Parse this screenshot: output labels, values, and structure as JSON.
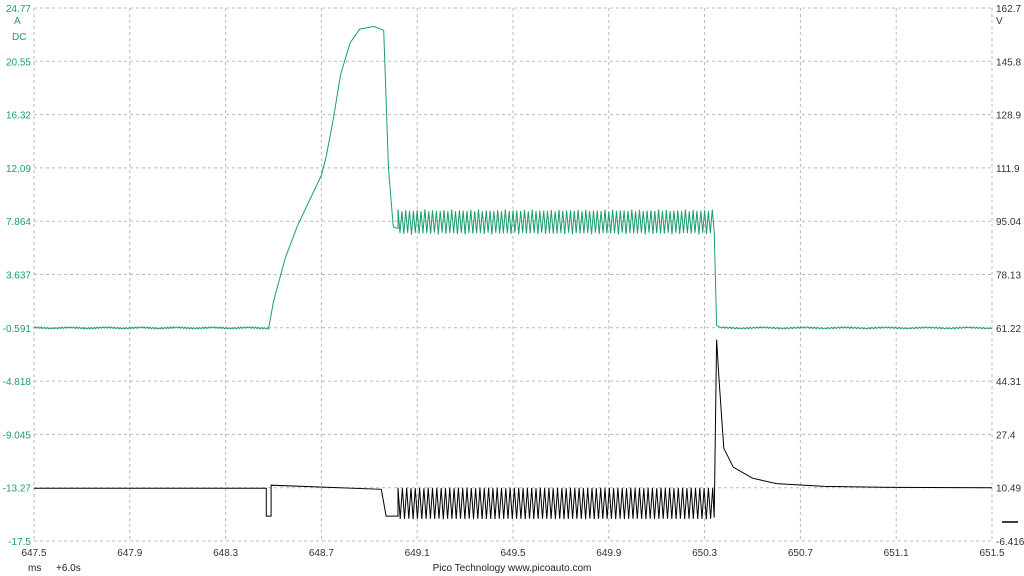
{
  "chart_data": {
    "type": "line",
    "title": "",
    "x_axis": {
      "range": [
        647.5,
        651.5
      ],
      "ticks": [
        "647.5",
        "647.9",
        "648.3",
        "648.7",
        "649.1",
        "649.5",
        "649.9",
        "650.3",
        "650.7",
        "651.1",
        "651.5"
      ],
      "unit_label": "ms",
      "offset_label": "+6.0s"
    },
    "left_axis": {
      "unit": "A",
      "coupling": "DC",
      "range": [
        -17.5,
        24.77
      ],
      "ticks": [
        "24.77",
        "20.55",
        "16.32",
        "12.09",
        "7.864",
        "3.637",
        "-0.591",
        "-4.818",
        "-9.045",
        "-13.27",
        "-17.5"
      ],
      "color": "#1a9e6a"
    },
    "right_axis": {
      "unit": "V",
      "range": [
        -6.416,
        162.7
      ],
      "ticks": [
        "162.7",
        "145.8",
        "128.9",
        "111.9",
        "95.04",
        "78.13",
        "61.22",
        "44.31",
        "27.4",
        "10.49",
        "-6.416"
      ],
      "color": "#333333"
    },
    "grid": true,
    "series": [
      {
        "axis": "left",
        "color": "#1a9e6a",
        "segments": [
          {
            "kind": "flat",
            "x_start": 647.5,
            "x_end": 648.48,
            "y": -0.6,
            "noise": 0.08
          },
          {
            "kind": "points",
            "points": [
              [
                648.48,
                -0.6
              ],
              [
                648.5,
                1.5
              ],
              [
                648.55,
                5.0
              ],
              [
                648.6,
                7.5
              ],
              [
                648.65,
                9.5
              ],
              [
                648.7,
                11.5
              ],
              [
                648.72,
                13.0
              ],
              [
                648.75,
                16.0
              ],
              [
                648.78,
                19.5
              ],
              [
                648.82,
                22.0
              ],
              [
                648.86,
                23.1
              ],
              [
                648.92,
                23.3
              ],
              [
                648.96,
                23.0
              ],
              [
                648.98,
                12.0
              ],
              [
                649.0,
                7.4
              ],
              [
                649.02,
                7.3
              ]
            ]
          },
          {
            "kind": "oscillation",
            "x_start": 649.02,
            "x_end": 650.34,
            "y_min": 6.8,
            "y_max": 8.8,
            "period": 0.016
          },
          {
            "kind": "points",
            "points": [
              [
                650.34,
                7.0
              ],
              [
                650.35,
                -0.4
              ],
              [
                650.37,
                -0.6
              ]
            ]
          },
          {
            "kind": "flat",
            "x_start": 650.37,
            "x_end": 651.5,
            "y": -0.6,
            "noise": 0.08
          }
        ]
      },
      {
        "axis": "right",
        "color": "#000000",
        "segments": [
          {
            "kind": "points",
            "points": [
              [
                647.5,
                10.3
              ],
              [
                648.47,
                10.3
              ],
              [
                648.47,
                1.5
              ],
              [
                648.49,
                1.5
              ],
              [
                648.49,
                11.3
              ],
              [
                648.95,
                10.0
              ],
              [
                648.97,
                1.5
              ],
              [
                649.02,
                1.5
              ]
            ]
          },
          {
            "kind": "oscillation",
            "x_start": 649.02,
            "x_end": 650.34,
            "y_min": 0.5,
            "y_max": 10.5,
            "period": 0.018
          },
          {
            "kind": "points",
            "points": [
              [
                650.34,
                1.0
              ],
              [
                650.35,
                57.5
              ],
              [
                650.36,
                45.0
              ],
              [
                650.38,
                23.0
              ],
              [
                650.42,
                17.0
              ],
              [
                650.5,
                13.5
              ],
              [
                650.6,
                11.8
              ],
              [
                650.8,
                10.9
              ],
              [
                651.1,
                10.6
              ],
              [
                651.5,
                10.5
              ]
            ]
          }
        ]
      }
    ]
  },
  "footer": {
    "ms_label": "ms",
    "offset_label": "+6.0s",
    "brand": "Pico Technology   www.picoauto.com"
  }
}
